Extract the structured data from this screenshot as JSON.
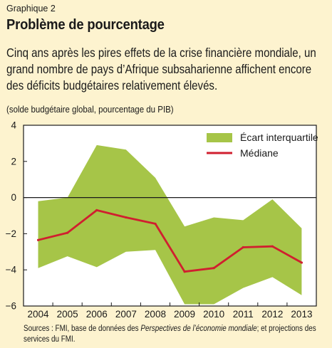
{
  "header": {
    "label": "Graphique 2",
    "title": "Problème de pourcentage",
    "subtitle": "Cinq ans après les pires effets de la crise financière mondiale, un grand nombre de pays d’Afrique subsaharienne affichent encore des déficits budgétaires relativement élevés.",
    "units": "(solde budgétaire global, pourcentage du PIB)"
  },
  "footer": {
    "source_prefix": "Sources : FMI, base de données des ",
    "source_italic": "Perspectives de l’économie mondiale",
    "source_suffix": "; et projections des services du FMI."
  },
  "colors": {
    "background": "#fdf3cf",
    "band": "#a6c548",
    "median": "#d01f2f"
  },
  "chart_data": {
    "type": "area",
    "x": [
      "2004",
      "2005",
      "2006",
      "2007",
      "2008",
      "2009",
      "2010",
      "2011",
      "2012",
      "2013"
    ],
    "series": [
      {
        "name": "Écart interquartile",
        "kind": "band",
        "upper": [
          -0.2,
          0.0,
          2.9,
          2.65,
          1.1,
          -1.6,
          -1.1,
          -1.25,
          -0.1,
          -1.7
        ],
        "lower": [
          -3.9,
          -3.25,
          -3.85,
          -3.0,
          -2.9,
          -5.9,
          -5.9,
          -5.0,
          -4.4,
          -5.4
        ]
      },
      {
        "name": "Médiane",
        "kind": "line",
        "values": [
          -2.35,
          -1.95,
          -0.7,
          -1.1,
          -1.45,
          -4.1,
          -3.9,
          -2.75,
          -2.7,
          -3.6
        ]
      }
    ],
    "yticks": [
      "4",
      "2",
      "0",
      "−2",
      "−4",
      "−6"
    ],
    "ylim": [
      -6,
      4
    ],
    "legend_position": "top-right",
    "grid": false,
    "zero_line": true
  }
}
